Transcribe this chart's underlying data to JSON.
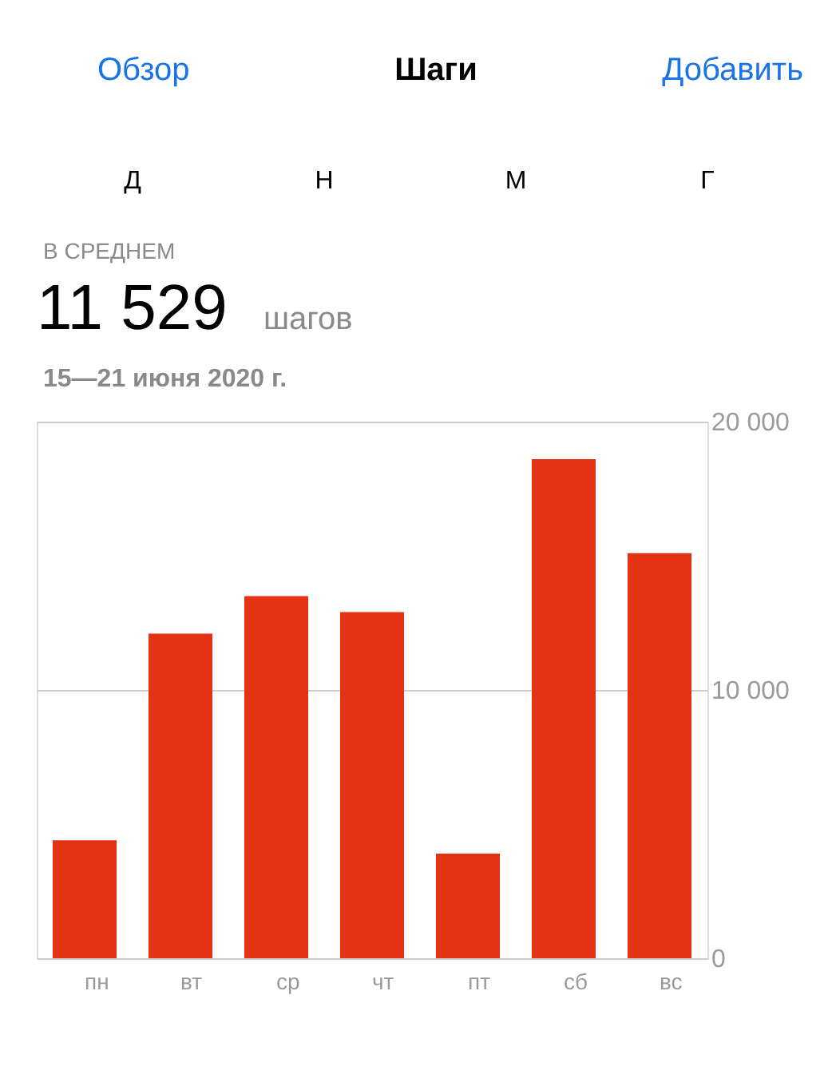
{
  "chart_data": {
    "type": "bar",
    "title": "Шаги",
    "annotations": [
      "Обзор",
      "Добавить",
      "Д",
      "Н",
      "М",
      "Г",
      "В СРЕДНЕМ",
      "11 529",
      "шагов",
      "15—21 июня 2020 г."
    ],
    "categories": [
      "пн",
      "вт",
      "ср",
      "чт",
      "пт",
      "сб",
      "вс"
    ],
    "values": [
      4400,
      12100,
      13500,
      12900,
      3900,
      18600,
      15100
    ],
    "color": "#e43214",
    "ylim": [
      0,
      20000
    ],
    "yticks": [
      {
        "value": 0,
        "label": "0"
      },
      {
        "value": 10000,
        "label": "10 000"
      },
      {
        "value": 20000,
        "label": "20 000"
      }
    ],
    "grid": "y"
  }
}
